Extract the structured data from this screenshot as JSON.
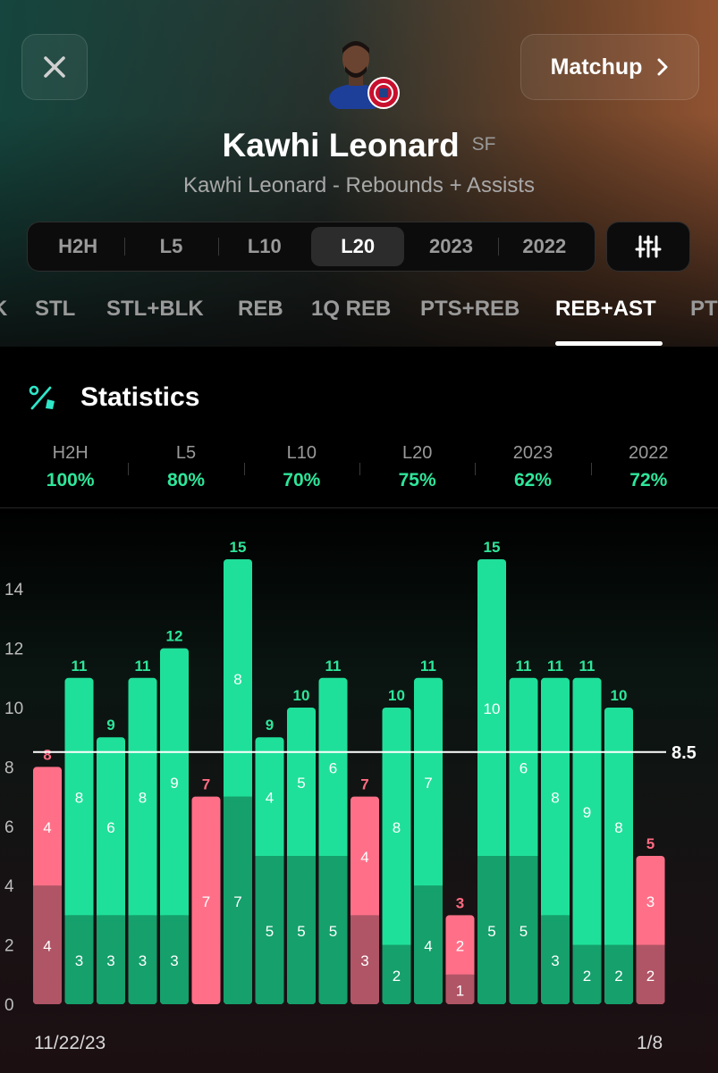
{
  "header": {
    "matchup_label": "Matchup",
    "player_name": "Kawhi Leonard",
    "position": "SF",
    "subtitle": "Kawhi Leonard - Rebounds + Assists"
  },
  "range_tabs": [
    {
      "label": "H2H",
      "active": false
    },
    {
      "label": "L5",
      "active": false
    },
    {
      "label": "L10",
      "active": false
    },
    {
      "label": "L20",
      "active": true
    },
    {
      "label": "2023",
      "active": false
    },
    {
      "label": "2022",
      "active": false
    }
  ],
  "stat_tabs": [
    {
      "label": "K",
      "active": false
    },
    {
      "label": "STL",
      "active": false
    },
    {
      "label": "STL+BLK",
      "active": false
    },
    {
      "label": "REB",
      "active": false
    },
    {
      "label": "1Q REB",
      "active": false
    },
    {
      "label": "PTS+REB",
      "active": false
    },
    {
      "label": "REB+AST",
      "active": true
    },
    {
      "label": "PT",
      "active": false
    }
  ],
  "section_title": "Statistics",
  "summary": [
    {
      "label": "H2H",
      "value": "100%"
    },
    {
      "label": "L5",
      "value": "80%"
    },
    {
      "label": "L10",
      "value": "70%"
    },
    {
      "label": "L20",
      "value": "75%"
    },
    {
      "label": "2023",
      "value": "62%"
    },
    {
      "label": "2022",
      "value": "72%"
    }
  ],
  "colors": {
    "over_top": "#1fe09a",
    "over_bottom": "#15a06c",
    "over_label": "#2ee69a",
    "under_top": "#ff7088",
    "under_bottom": "#b05566",
    "under_label": "#ff6b81"
  },
  "chart_data": {
    "type": "bar",
    "stacked": true,
    "line": 8.5,
    "line_label": "8.5",
    "ylim": [
      0,
      16
    ],
    "yticks": [
      0,
      2,
      4,
      6,
      8,
      10,
      12,
      14
    ],
    "start_date": "11/22/23",
    "end_date": "1/8",
    "bottom_values": [
      4,
      3,
      3,
      3,
      3,
      7,
      7,
      5,
      5,
      5,
      3,
      2,
      4,
      1,
      5,
      5,
      3,
      2,
      2,
      2
    ],
    "top_values": [
      4,
      8,
      6,
      8,
      9,
      0,
      8,
      4,
      5,
      6,
      4,
      8,
      7,
      2,
      10,
      6,
      8,
      9,
      8,
      3
    ],
    "totals": [
      8,
      11,
      9,
      11,
      12,
      7,
      15,
      9,
      10,
      11,
      7,
      10,
      11,
      3,
      15,
      11,
      11,
      11,
      10,
      5
    ]
  }
}
